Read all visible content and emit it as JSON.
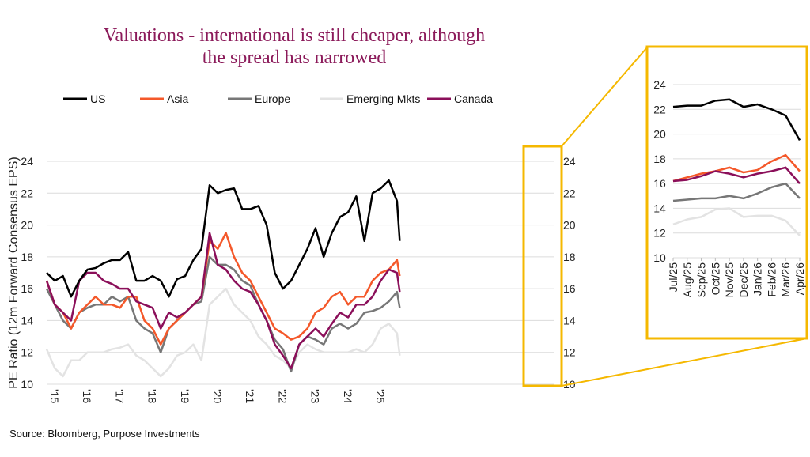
{
  "chart_data": [
    {
      "type": "line",
      "title": "Valuations - international is still cheaper, although the spread has narrowed",
      "title_lines": [
        "Valuations - international is still cheaper, although",
        "the spread has narrowed"
      ],
      "ylabel": "PE Ratio  (12m Forward Consensus EPS)",
      "xlabel": "",
      "ylim": [
        10,
        24
      ],
      "yticks": [
        "10",
        "12",
        "14",
        "16",
        "18",
        "20",
        "22",
        "24"
      ],
      "xticks": [
        "'15",
        "'16",
        "'17",
        "'18",
        "'19",
        "'20",
        "'21",
        "'22",
        "'23",
        "'24",
        "'25"
      ],
      "grid": true,
      "legend": "top",
      "highlight_box_color": "#f5b800",
      "x": [
        "2015-01",
        "2015-04",
        "2015-07",
        "2015-10",
        "2016-01",
        "2016-04",
        "2016-07",
        "2016-10",
        "2017-01",
        "2017-04",
        "2017-07",
        "2017-10",
        "2018-01",
        "2018-04",
        "2018-07",
        "2018-10",
        "2019-01",
        "2019-04",
        "2019-07",
        "2019-10",
        "2020-01",
        "2020-04",
        "2020-07",
        "2020-10",
        "2021-01",
        "2021-04",
        "2021-07",
        "2021-10",
        "2022-01",
        "2022-04",
        "2022-07",
        "2022-10",
        "2023-01",
        "2023-04",
        "2023-07",
        "2023-10",
        "2024-01",
        "2024-04",
        "2024-07",
        "2024-10",
        "2025-01",
        "2025-04",
        "2025-07",
        "2025-10",
        "2025-11"
      ],
      "series": [
        {
          "name": "US",
          "color": "#000000",
          "values": [
            17,
            16.5,
            16.8,
            15.5,
            16.5,
            17.2,
            17.3,
            17.6,
            17.8,
            17.8,
            18.3,
            16.5,
            16.5,
            16.8,
            16.5,
            15.5,
            16.6,
            16.8,
            17.8,
            18.5,
            22.5,
            22,
            22.2,
            22.3,
            21,
            21,
            21.2,
            20,
            17,
            16,
            16.5,
            17.5,
            18.5,
            19.8,
            18,
            19.5,
            20.5,
            20.8,
            21.8,
            19,
            22,
            22.3,
            22.8,
            21.5,
            19
          ]
        },
        {
          "name": "Asia",
          "color": "#f4582a",
          "values": [
            16.5,
            15,
            14.5,
            13.5,
            14.5,
            15,
            15.5,
            15,
            15,
            14.8,
            15.5,
            15.5,
            14,
            13.5,
            12.5,
            13.5,
            14,
            14.5,
            15,
            15.5,
            19,
            18.5,
            19.5,
            18,
            17,
            16.5,
            15.5,
            14.5,
            13.5,
            13.2,
            12.8,
            13,
            13.5,
            14.5,
            14.8,
            15.5,
            15.8,
            15,
            15.5,
            15.5,
            16.5,
            17,
            17.2,
            17.8,
            16.8
          ]
        },
        {
          "name": "Europe",
          "color": "#777777",
          "values": [
            16,
            15,
            14,
            13.5,
            14.5,
            14.8,
            15,
            15,
            15.5,
            15.2,
            15.5,
            14,
            13.5,
            13.2,
            12,
            13.5,
            14,
            14.5,
            15,
            15.2,
            18,
            17.5,
            17.5,
            17.2,
            16.5,
            16.2,
            15,
            14,
            12.8,
            12.2,
            10.8,
            12.5,
            13,
            12.8,
            12.5,
            13.5,
            13.8,
            13.5,
            13.8,
            14.5,
            14.6,
            14.8,
            15.2,
            15.8,
            14.8
          ]
        },
        {
          "name": "Emerging Mkts",
          "color": "#e3e3e3",
          "values": [
            12.2,
            11,
            10.5,
            11.5,
            11.5,
            12,
            12,
            12,
            12.2,
            12.3,
            12.5,
            11.8,
            11.5,
            11,
            10.5,
            11,
            11.8,
            12,
            12.5,
            11.5,
            15,
            15.5,
            16,
            15,
            14.5,
            14,
            13,
            12.5,
            11.8,
            11.5,
            11,
            12,
            12.5,
            12.2,
            12,
            12,
            12,
            12,
            12.2,
            12,
            12.5,
            13.5,
            13.8,
            13.2,
            11.8
          ]
        },
        {
          "name": "Canada",
          "color": "#8b0f5a",
          "values": [
            16.5,
            15,
            14.5,
            14,
            16.5,
            17,
            17,
            16.5,
            16.3,
            16,
            16,
            15.2,
            15,
            14.8,
            13.5,
            14.5,
            14.2,
            14.5,
            15,
            15.5,
            19.5,
            17.5,
            17.2,
            16.5,
            16,
            15.8,
            15,
            14,
            12.5,
            11.8,
            11,
            12.5,
            13,
            13.5,
            13,
            13.8,
            14.5,
            14.2,
            15,
            15,
            15.5,
            16.5,
            17.2,
            17,
            15.8
          ]
        }
      ]
    },
    {
      "type": "line",
      "title": "",
      "ylim": [
        10,
        24
      ],
      "yticks": [
        "10",
        "12",
        "14",
        "16",
        "18",
        "20",
        "22",
        "24"
      ],
      "categories": [
        "Jul/25",
        "Aug/25",
        "Sep/25",
        "Oct/25",
        "Nov/25",
        "Dec/25",
        "Jan/26",
        "Feb/26",
        "Mar/26",
        "Apr/26"
      ],
      "grid": true,
      "series": [
        {
          "name": "US",
          "color": "#000000",
          "values": [
            22.2,
            22.3,
            22.3,
            22.7,
            22.8,
            22.2,
            22.4,
            22.0,
            21.5,
            19.5
          ]
        },
        {
          "name": "Asia",
          "color": "#f4582a",
          "values": [
            16.2,
            16.5,
            16.8,
            17,
            17.3,
            16.9,
            17.1,
            17.8,
            18.3,
            17
          ]
        },
        {
          "name": "Europe",
          "color": "#777777",
          "values": [
            14.6,
            14.7,
            14.8,
            14.8,
            15,
            14.8,
            15.2,
            15.7,
            16,
            14.8
          ]
        },
        {
          "name": "Emerging Mkts",
          "color": "#e3e3e3",
          "values": [
            12.7,
            13.1,
            13.3,
            13.9,
            14,
            13.3,
            13.4,
            13.4,
            13,
            11.8
          ]
        },
        {
          "name": "Canada",
          "color": "#8b0f5a",
          "values": [
            16.2,
            16.3,
            16.6,
            17,
            16.8,
            16.5,
            16.8,
            17,
            17.3,
            16
          ]
        }
      ]
    }
  ],
  "source": "Source: Bloomberg, Purpose Investments"
}
